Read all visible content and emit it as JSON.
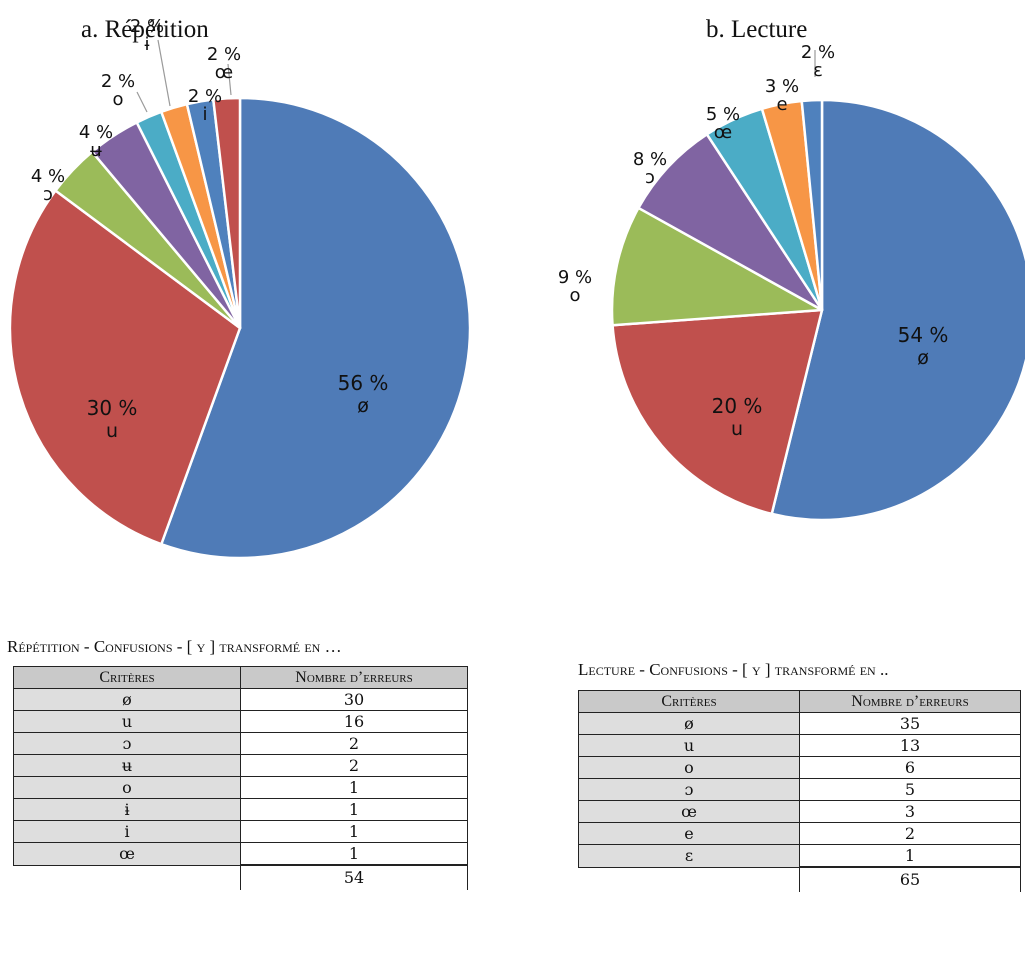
{
  "chart_data": [
    {
      "type": "pie",
      "title": "a. Répétition",
      "slices": [
        {
          "label": "ø",
          "pct_label": "56 %",
          "value": 30,
          "color": "#4f7bb7"
        },
        {
          "label": "u",
          "pct_label": "30 %",
          "value": 16,
          "color": "#c0504d"
        },
        {
          "label": "ɔ",
          "pct_label": "4 %",
          "value": 2,
          "color": "#9bbb59"
        },
        {
          "label": "ʉ",
          "pct_label": "4 %",
          "value": 2,
          "color": "#8064a2"
        },
        {
          "label": "o",
          "pct_label": "2 %",
          "value": 1,
          "color": "#4bacc6"
        },
        {
          "label": "ɨ",
          "pct_label": "2 %",
          "value": 1,
          "color": "#f79646"
        },
        {
          "label": "i",
          "pct_label": "2 %",
          "value": 1,
          "color": "#4f81bd"
        },
        {
          "label": "œ",
          "pct_label": "2 %",
          "value": 1,
          "color": "#c0504d"
        }
      ]
    },
    {
      "type": "pie",
      "title": "b. Lecture",
      "slices": [
        {
          "label": "ø",
          "pct_label": "54 %",
          "value": 35,
          "color": "#4f7bb7"
        },
        {
          "label": "u",
          "pct_label": "20 %",
          "value": 13,
          "color": "#c0504d"
        },
        {
          "label": "o",
          "pct_label": "9 %",
          "value": 6,
          "color": "#9bbb59"
        },
        {
          "label": "ɔ",
          "pct_label": "8 %",
          "value": 5,
          "color": "#8064a2"
        },
        {
          "label": "œ",
          "pct_label": "5 %",
          "value": 3,
          "color": "#4bacc6"
        },
        {
          "label": "e",
          "pct_label": "3 %",
          "value": 2,
          "color": "#f79646"
        },
        {
          "label": "ɛ",
          "pct_label": "2 %",
          "value": 1,
          "color": "#4f81bd"
        }
      ]
    }
  ],
  "tables": {
    "repetition": {
      "caption": "Répétition - Confusions - [ y ] transformé en …",
      "headers": [
        "Critères",
        "Nombre d’erreurs"
      ],
      "rows": [
        {
          "crit": "ø",
          "n": "30"
        },
        {
          "crit": "u",
          "n": "16"
        },
        {
          "crit": "ɔ",
          "n": "2"
        },
        {
          "crit": "ʉ",
          "n": "2"
        },
        {
          "crit": "o",
          "n": "1"
        },
        {
          "crit": "ɨ",
          "n": "1"
        },
        {
          "crit": "i",
          "n": "1"
        },
        {
          "crit": "œ",
          "n": "1"
        }
      ],
      "total": "54"
    },
    "lecture": {
      "caption": "Lecture - Confusions - [ y ] transformé en ..",
      "headers": [
        "Critères",
        "Nombre d’erreurs"
      ],
      "rows": [
        {
          "crit": "ø",
          "n": "35"
        },
        {
          "crit": "u",
          "n": "13"
        },
        {
          "crit": "o",
          "n": "6"
        },
        {
          "crit": "ɔ",
          "n": "5"
        },
        {
          "crit": "œ",
          "n": "3"
        },
        {
          "crit": "e",
          "n": "2"
        },
        {
          "crit": "ɛ",
          "n": "1"
        }
      ],
      "total": "65"
    }
  }
}
